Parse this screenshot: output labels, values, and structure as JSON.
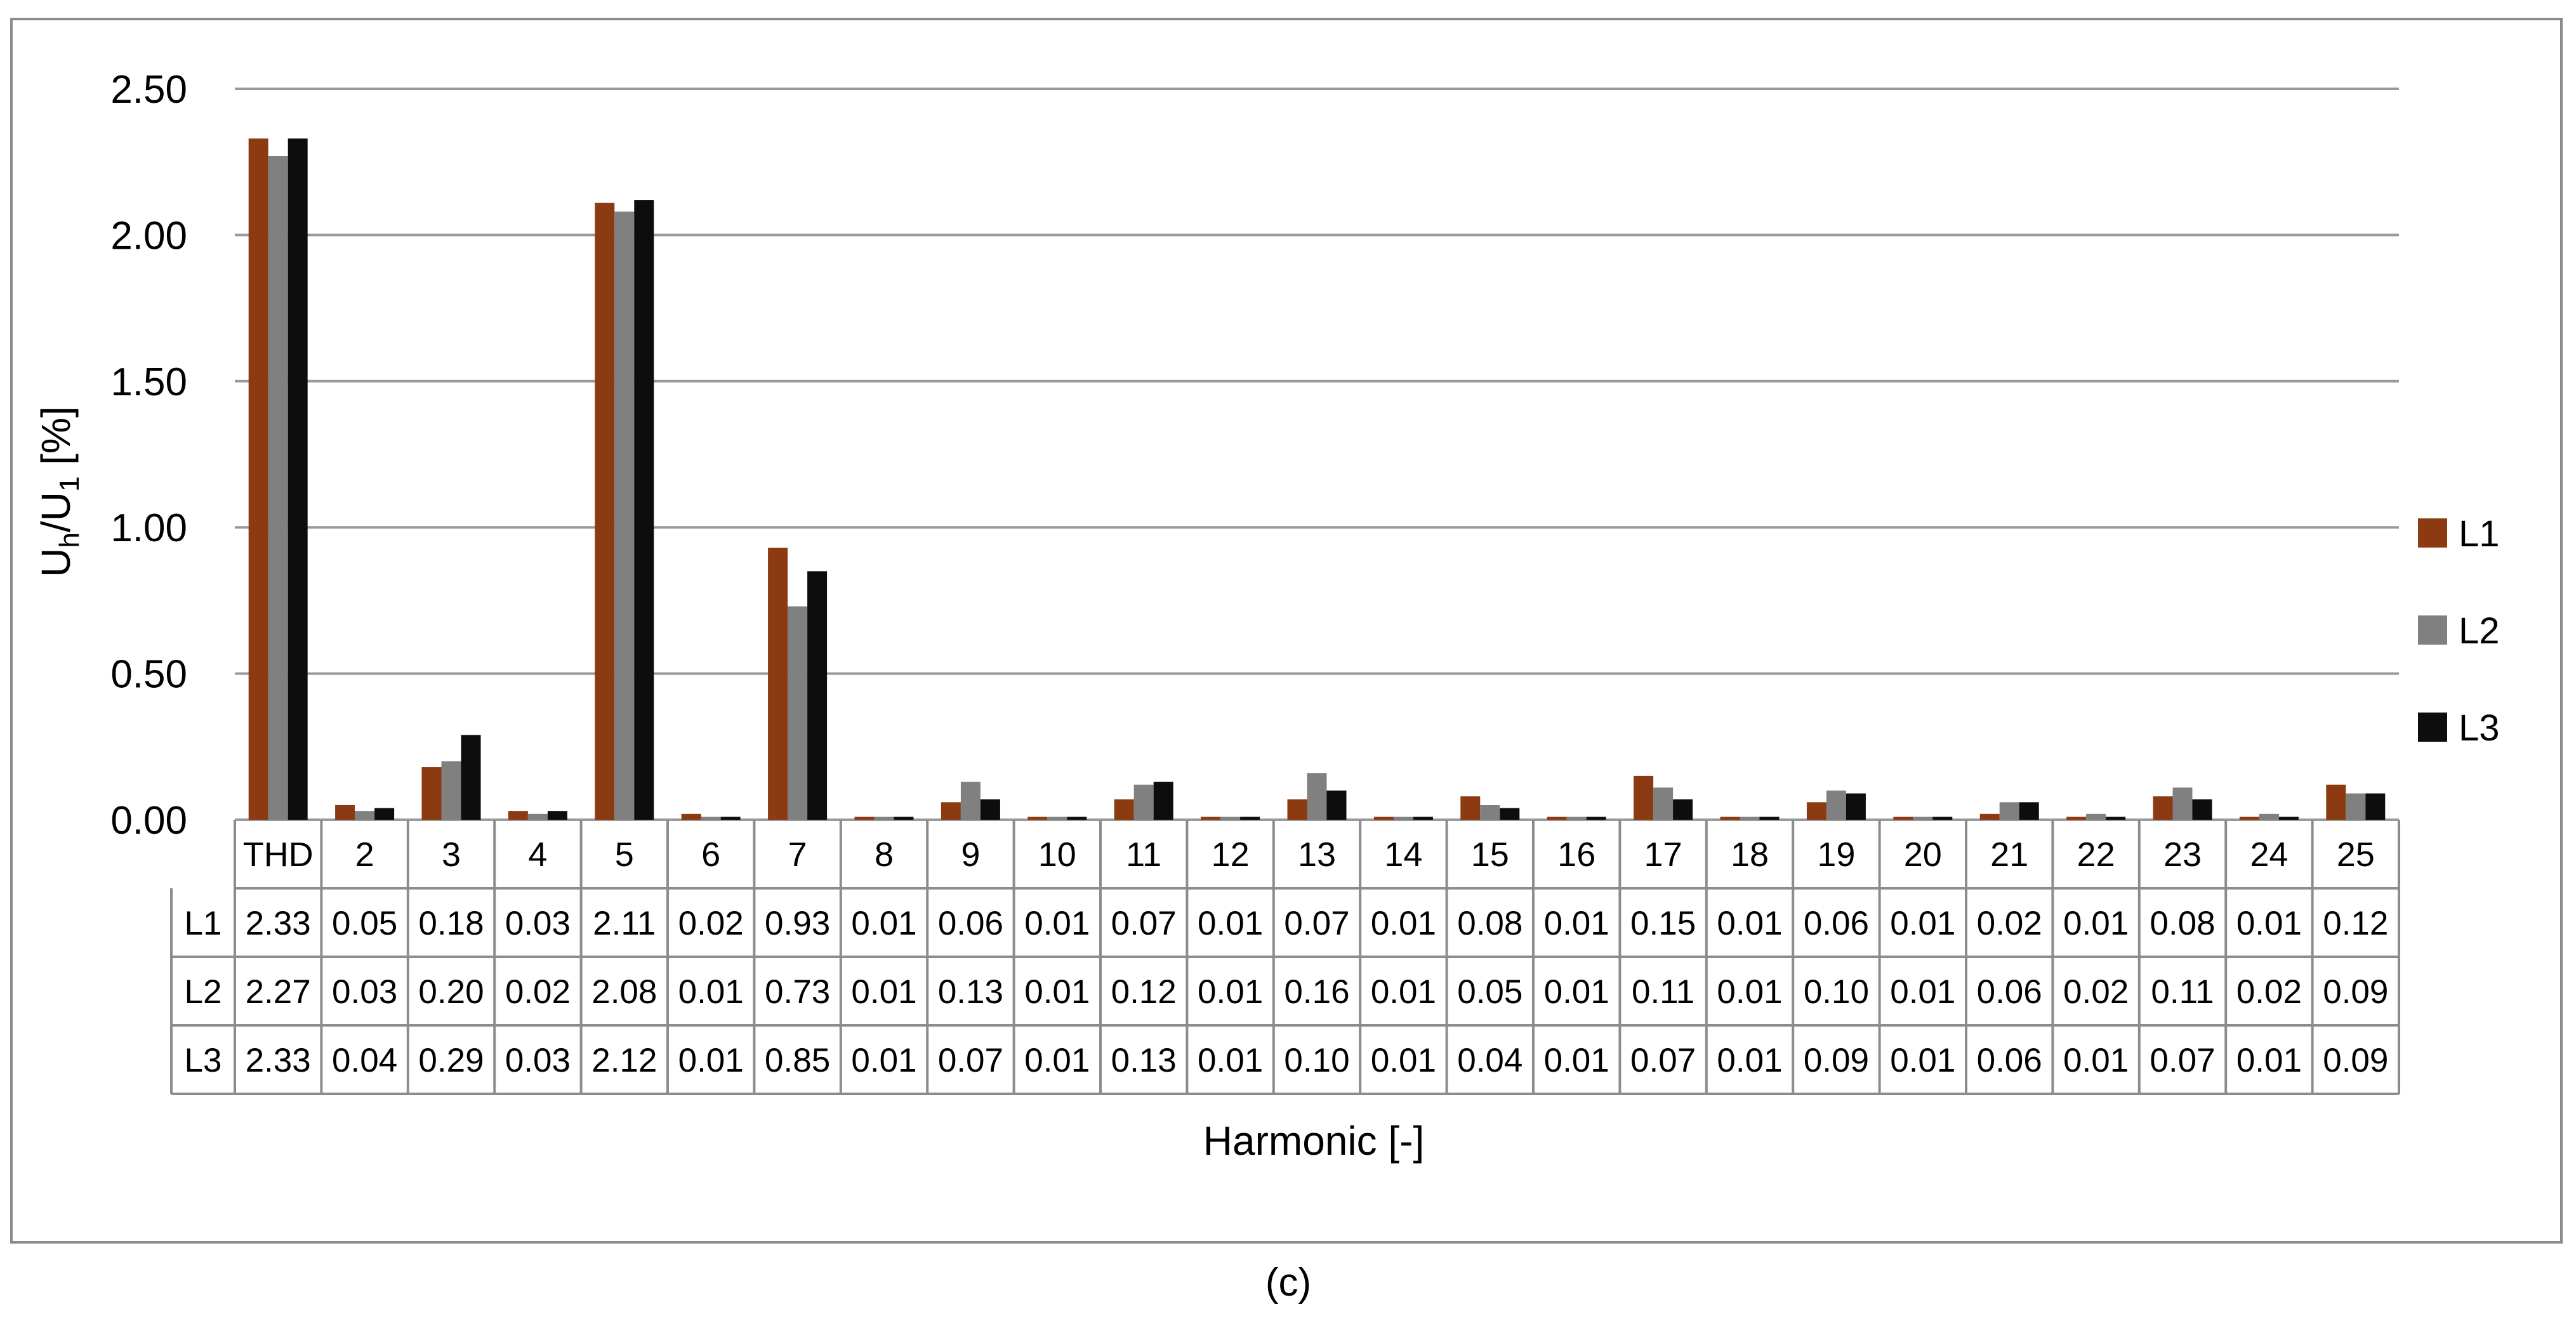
{
  "panel_label": "(c)",
  "colors": {
    "L1": "#8B3A12",
    "L2": "#808080",
    "L3": "#0d0d0d"
  },
  "chart_data": {
    "type": "bar",
    "xlabel": "Harmonic [-]",
    "ylabel_main": "U",
    "ylabel_sub_h": "h",
    "ylabel_mid": "/U",
    "ylabel_sub_1": "1",
    "ylabel_unit": " [%]",
    "ylim": [
      0,
      2.5
    ],
    "yticks": [
      "0.00",
      "0.50",
      "1.00",
      "1.50",
      "2.00",
      "2.50"
    ],
    "grid": true,
    "legend_position": "right",
    "data_table": true,
    "categories": [
      "THD",
      "2",
      "3",
      "4",
      "5",
      "6",
      "7",
      "8",
      "9",
      "10",
      "11",
      "12",
      "13",
      "14",
      "15",
      "16",
      "17",
      "18",
      "19",
      "20",
      "21",
      "22",
      "23",
      "24",
      "25"
    ],
    "series": [
      {
        "name": "L1",
        "values": [
          2.33,
          0.05,
          0.18,
          0.03,
          2.11,
          0.02,
          0.93,
          0.01,
          0.06,
          0.01,
          0.07,
          0.01,
          0.07,
          0.01,
          0.08,
          0.01,
          0.15,
          0.01,
          0.06,
          0.01,
          0.02,
          0.01,
          0.08,
          0.01,
          0.12
        ],
        "labels": [
          "2.33",
          "0.05",
          "0.18",
          "0.03",
          "2.11",
          "0.02",
          "0.93",
          "0.01",
          "0.06",
          "0.01",
          "0.07",
          "0.01",
          "0.07",
          "0.01",
          "0.08",
          "0.01",
          "0.15",
          "0.01",
          "0.06",
          "0.01",
          "0.02",
          "0.01",
          "0.08",
          "0.01",
          "0.12"
        ]
      },
      {
        "name": "L2",
        "values": [
          2.27,
          0.03,
          0.2,
          0.02,
          2.08,
          0.01,
          0.73,
          0.01,
          0.13,
          0.01,
          0.12,
          0.01,
          0.16,
          0.01,
          0.05,
          0.01,
          0.11,
          0.01,
          0.1,
          0.01,
          0.06,
          0.02,
          0.11,
          0.02,
          0.09
        ],
        "labels": [
          "2.27",
          "0.03",
          "0.20",
          "0.02",
          "2.08",
          "0.01",
          "0.73",
          "0.01",
          "0.13",
          "0.01",
          "0.12",
          "0.01",
          "0.16",
          "0.01",
          "0.05",
          "0.01",
          "0.11",
          "0.01",
          "0.10",
          "0.01",
          "0.06",
          "0.02",
          "0.11",
          "0.02",
          "0.09"
        ]
      },
      {
        "name": "L3",
        "values": [
          2.33,
          0.04,
          0.29,
          0.03,
          2.12,
          0.01,
          0.85,
          0.01,
          0.07,
          0.01,
          0.13,
          0.01,
          0.1,
          0.01,
          0.04,
          0.01,
          0.07,
          0.01,
          0.09,
          0.01,
          0.06,
          0.01,
          0.07,
          0.01,
          0.09
        ],
        "labels": [
          "2.33",
          "0.04",
          "0.29",
          "0.03",
          "2.12",
          "0.01",
          "0.85",
          "0.01",
          "0.07",
          "0.01",
          "0.13",
          "0.01",
          "0.10",
          "0.01",
          "0.04",
          "0.01",
          "0.07",
          "0.01",
          "0.09",
          "0.01",
          "0.06",
          "0.01",
          "0.07",
          "0.01",
          "0.09"
        ]
      }
    ]
  }
}
